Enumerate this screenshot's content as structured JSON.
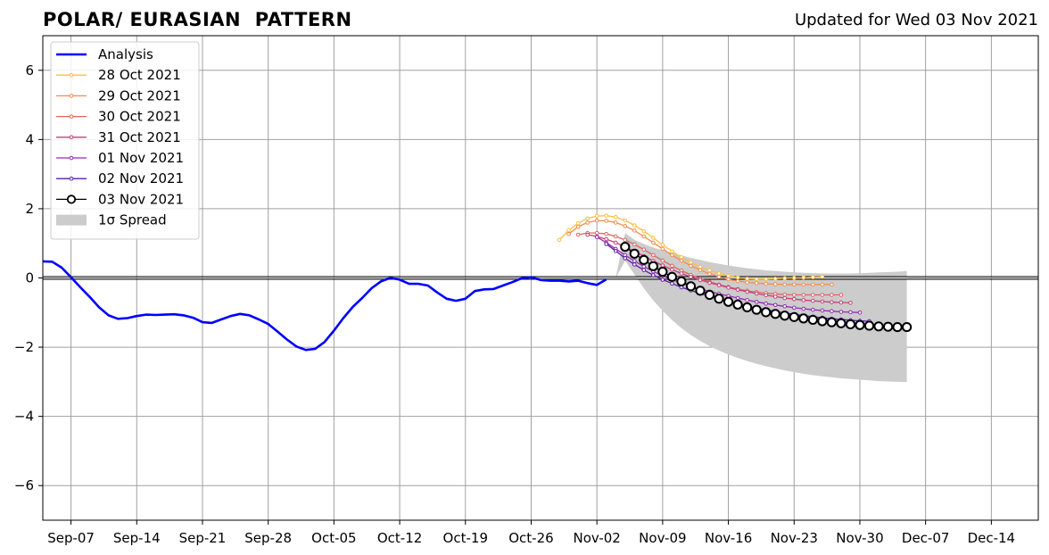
{
  "chart_data": {
    "type": "line",
    "title_left": "POLAR/ EURASIAN  PATTERN",
    "title_right": "Updated for Wed 03 Nov 2021",
    "x_axis": {
      "start_date": "2021-09-03",
      "end_date": "2021-12-18",
      "ticks": [
        "Sep-07",
        "Sep-14",
        "Sep-21",
        "Sep-28",
        "Oct-05",
        "Oct-12",
        "Oct-19",
        "Oct-26",
        "Nov-02",
        "Nov-09",
        "Nov-16",
        "Nov-23",
        "Nov-30",
        "Dec-07",
        "Dec-14"
      ],
      "tick_dates": [
        "2021-09-06",
        "2021-09-13",
        "2021-09-20",
        "2021-09-27",
        "2021-10-04",
        "2021-10-11",
        "2021-10-18",
        "2021-10-25",
        "2021-11-01",
        "2021-11-08",
        "2021-11-15",
        "2021-11-22",
        "2021-11-29",
        "2021-12-06",
        "2021-12-13"
      ]
    },
    "ylim": [
      -7,
      7
    ],
    "yticks": [
      -6,
      -4,
      -2,
      0,
      2,
      4,
      6
    ],
    "ytick_labels": [
      "−6",
      "−4",
      "−2",
      "0",
      "2",
      "4",
      "6"
    ],
    "grid": true,
    "legend_position": "top-left",
    "analysis": {
      "name": "Analysis",
      "color": "#0000ff",
      "start_date": "2021-09-03",
      "values": [
        0.48,
        0.47,
        0.3,
        0.02,
        -0.27,
        -0.55,
        -0.85,
        -1.08,
        -1.18,
        -1.16,
        -1.1,
        -1.06,
        -1.07,
        -1.06,
        -1.05,
        -1.08,
        -1.15,
        -1.28,
        -1.3,
        -1.2,
        -1.1,
        -1.04,
        -1.08,
        -1.2,
        -1.33,
        -1.55,
        -1.78,
        -1.98,
        -2.08,
        -2.05,
        -1.85,
        -1.52,
        -1.16,
        -0.84,
        -0.58,
        -0.3,
        -0.1,
        0.0,
        -0.05,
        -0.17,
        -0.17,
        -0.22,
        -0.42,
        -0.6,
        -0.66,
        -0.6,
        -0.38,
        -0.33,
        -0.32,
        -0.22,
        -0.12,
        -0.01,
        0.02,
        -0.06,
        -0.08,
        -0.08,
        -0.1,
        -0.08,
        -0.15,
        -0.2,
        -0.04
      ]
    },
    "forecasts": [
      {
        "name": "28 Oct 2021",
        "color": "#fcbf3d",
        "start_date": "2021-10-28",
        "values": [
          1.1,
          1.38,
          1.58,
          1.72,
          1.79,
          1.8,
          1.76,
          1.66,
          1.52,
          1.35,
          1.16,
          0.96,
          0.77,
          0.6,
          0.45,
          0.32,
          0.22,
          0.13,
          0.06,
          0.01,
          -0.02,
          -0.03,
          -0.03,
          -0.02,
          -0.01,
          0.0,
          0.01,
          0.02,
          0.03
        ]
      },
      {
        "name": "29 Oct 2021",
        "color": "#f58a4b",
        "start_date": "2021-10-29",
        "values": [
          1.27,
          1.48,
          1.6,
          1.66,
          1.65,
          1.6,
          1.5,
          1.37,
          1.2,
          1.02,
          0.84,
          0.66,
          0.5,
          0.35,
          0.23,
          0.12,
          0.03,
          -0.04,
          -0.09,
          -0.13,
          -0.15,
          -0.17,
          -0.18,
          -0.19,
          -0.19,
          -0.19,
          -0.19,
          -0.19,
          -0.19
        ]
      },
      {
        "name": "30 Oct 2021",
        "color": "#e06461",
        "start_date": "2021-10-30",
        "values": [
          1.25,
          1.3,
          1.3,
          1.27,
          1.2,
          1.1,
          0.97,
          0.82,
          0.66,
          0.5,
          0.35,
          0.21,
          0.09,
          -0.02,
          -0.11,
          -0.19,
          -0.26,
          -0.32,
          -0.37,
          -0.41,
          -0.44,
          -0.46,
          -0.48,
          -0.49,
          -0.49,
          -0.49,
          -0.49,
          -0.49,
          -0.49
        ]
      },
      {
        "name": "31 Oct 2021",
        "color": "#c3407a",
        "start_date": "2021-10-31",
        "values": [
          1.25,
          1.2,
          1.12,
          1.02,
          0.9,
          0.77,
          0.63,
          0.49,
          0.36,
          0.24,
          0.13,
          0.03,
          -0.06,
          -0.14,
          -0.21,
          -0.28,
          -0.34,
          -0.4,
          -0.45,
          -0.5,
          -0.54,
          -0.58,
          -0.61,
          -0.64,
          -0.66,
          -0.68,
          -0.7,
          -0.71,
          -0.72
        ]
      },
      {
        "name": "01 Nov 2021",
        "color": "#962bb0",
        "start_date": "2021-11-01",
        "values": [
          1.18,
          1.02,
          0.84,
          0.66,
          0.49,
          0.33,
          0.19,
          0.06,
          -0.05,
          -0.15,
          -0.24,
          -0.32,
          -0.39,
          -0.46,
          -0.52,
          -0.58,
          -0.64,
          -0.69,
          -0.74,
          -0.78,
          -0.82,
          -0.86,
          -0.89,
          -0.92,
          -0.94,
          -0.96,
          -0.98,
          -0.99,
          -1.0
        ]
      },
      {
        "name": "02 Nov 2021",
        "color": "#5b1ea8",
        "start_date": "2021-11-02",
        "values": [
          0.98,
          0.78,
          0.57,
          0.39,
          0.23,
          0.08,
          -0.05,
          -0.16,
          -0.27,
          -0.36,
          -0.45,
          -0.53,
          -0.61,
          -0.68,
          -0.75,
          -0.81,
          -0.87,
          -0.92,
          -0.97,
          -1.01,
          -1.05,
          -1.09,
          -1.12,
          -1.15,
          -1.18,
          -1.2,
          -1.22,
          -1.24,
          -1.25
        ]
      },
      {
        "name": "03 Nov 2021",
        "color": "#000000",
        "start_date": "2021-11-04",
        "values": [
          0.9,
          0.7,
          0.52,
          0.34,
          0.18,
          0.03,
          -0.1,
          -0.24,
          -0.37,
          -0.49,
          -0.6,
          -0.69,
          -0.77,
          -0.85,
          -0.92,
          -0.99,
          -1.04,
          -1.09,
          -1.13,
          -1.17,
          -1.21,
          -1.25,
          -1.28,
          -1.31,
          -1.34,
          -1.36,
          -1.38,
          -1.4,
          -1.41,
          -1.42,
          -1.42
        ]
      }
    ],
    "spread": {
      "name": "1σ Spread",
      "color": "#cccccc",
      "start_date": "2021-11-03",
      "upper": [
        0.0,
        1.3,
        1.1,
        0.98,
        0.88,
        0.8,
        0.72,
        0.65,
        0.58,
        0.52,
        0.46,
        0.41,
        0.36,
        0.32,
        0.28,
        0.25,
        0.22,
        0.2,
        0.18,
        0.16,
        0.15,
        0.14,
        0.13,
        0.13,
        0.13,
        0.13,
        0.14,
        0.15,
        0.16,
        0.17,
        0.18,
        0.2
      ],
      "lower": [
        0.0,
        0.5,
        0.1,
        -0.3,
        -0.65,
        -0.95,
        -1.22,
        -1.45,
        -1.65,
        -1.82,
        -1.97,
        -2.1,
        -2.21,
        -2.31,
        -2.4,
        -2.48,
        -2.55,
        -2.61,
        -2.67,
        -2.72,
        -2.77,
        -2.81,
        -2.84,
        -2.87,
        -2.9,
        -2.92,
        -2.94,
        -2.96,
        -2.98,
        -2.99,
        -3.0,
        -3.01
      ]
    },
    "legend": [
      {
        "label": "Analysis",
        "kind": "analysis"
      },
      {
        "label": "28 Oct 2021",
        "kind": "forecast",
        "index": 0
      },
      {
        "label": "29 Oct 2021",
        "kind": "forecast",
        "index": 1
      },
      {
        "label": "30 Oct 2021",
        "kind": "forecast",
        "index": 2
      },
      {
        "label": "31 Oct 2021",
        "kind": "forecast",
        "index": 3
      },
      {
        "label": "01 Nov 2021",
        "kind": "forecast",
        "index": 4
      },
      {
        "label": "02 Nov 2021",
        "kind": "forecast",
        "index": 5
      },
      {
        "label": "03 Nov 2021",
        "kind": "current"
      },
      {
        "label": "1σ Spread",
        "kind": "spread"
      }
    ]
  }
}
